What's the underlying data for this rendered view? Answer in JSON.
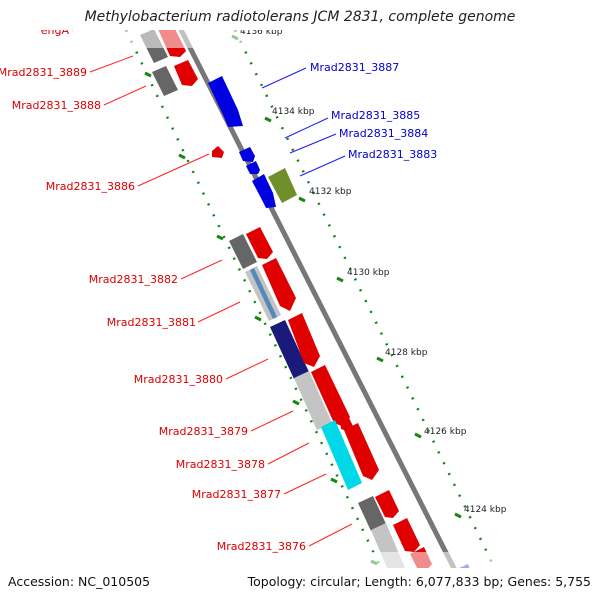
{
  "title": "Methylobacterium radiotolerans JCM 2831, complete genome",
  "accession_text": "Accession: NC_010505",
  "summary_text": "Topology: circular; Length: 6,077,833 bp; Genes: 5,755",
  "colors": {
    "forward_gene": "#e00000",
    "reverse_gene": "#0000e0",
    "label_forward": "#dd0000",
    "label_reverse": "#0000cc",
    "ruler": "#118811",
    "backbone": "#777777",
    "gray_block": "#666666",
    "light_gray_block": "#c4c4c4",
    "navy_block": "#1a1a7a",
    "olive_block": "#6f8f2a",
    "steel_block": "#5588bb",
    "cyan_block": "#00d8e8"
  },
  "ruler_ticks": [
    "4124 kbp",
    "4126 kbp",
    "4128 kbp",
    "4130 kbp",
    "4132 kbp",
    "4134 kbp",
    "4136 kbp"
  ],
  "labels_left": [
    "engA",
    "Mrad2831_3889",
    "Mrad2831_3888",
    "Mrad2831_3886",
    "Mrad2831_3882",
    "Mrad2831_3881",
    "Mrad2831_3880",
    "Mrad2831_3879",
    "Mrad2831_3878",
    "Mrad2831_3877",
    "Mrad2831_3876"
  ],
  "labels_right": [
    "Mrad2831_3887",
    "Mrad2831_3885",
    "Mrad2831_3884",
    "Mrad2831_3883"
  ]
}
